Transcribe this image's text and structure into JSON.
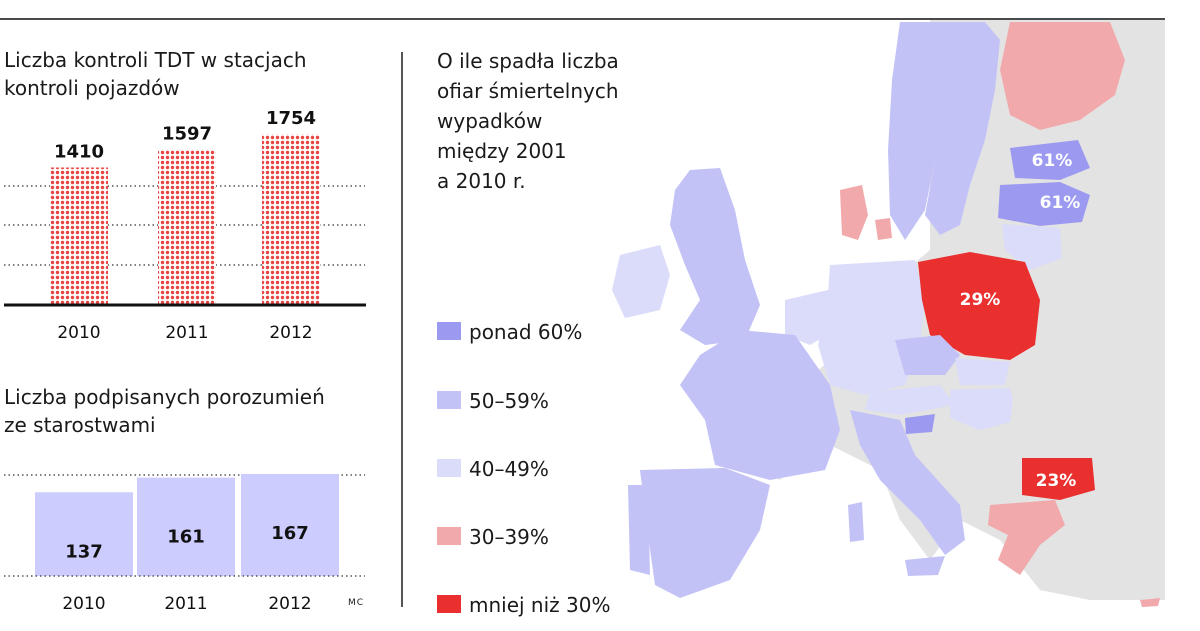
{
  "chart_data": [
    {
      "type": "bar",
      "title": "Liczba kontroli TDT w stacjach kontroli pojazdów",
      "title_lines": [
        "Liczba kontroli TDT w stacjach",
        "kontroli pojazdów"
      ],
      "categories": [
        "2010",
        "2011",
        "2012"
      ],
      "values": [
        1410,
        1597,
        1754
      ],
      "data_labels": [
        "1410",
        "1597",
        "1754"
      ],
      "bar_color": "#e84545",
      "bar_pattern": "dotted",
      "grid": true
    },
    {
      "type": "bar",
      "title": "Liczba podpisanych porozumień ze starostwami",
      "title_lines": [
        "Liczba podpisanych porozumień",
        "ze starostwami"
      ],
      "categories": [
        "2010",
        "2011",
        "2012"
      ],
      "values": [
        137,
        161,
        167
      ],
      "data_labels": [
        "137",
        "161",
        "167"
      ],
      "bar_color": "#ccccff",
      "grid": true
    }
  ],
  "map": {
    "title_lines": [
      "O ile spadła liczba",
      "ofiar śmiertelnych",
      "wypadków",
      "między 2001",
      "a 2010 r."
    ],
    "labels": [
      {
        "country": "Estonia",
        "value": "61%",
        "category": 0
      },
      {
        "country": "Latvia",
        "value": "61%",
        "category": 0
      },
      {
        "country": "Poland",
        "value": "29%",
        "category": 4
      },
      {
        "country": "Bulgaria",
        "value": "23%",
        "category": 4
      }
    ],
    "legend": [
      {
        "label": "ponad 60%",
        "color": "#9b99f0"
      },
      {
        "label": "50–59%",
        "color": "#c2c2f7"
      },
      {
        "label": "40–49%",
        "color": "#dadcfa"
      },
      {
        "label": "30–39%",
        "color": "#f2a9ab"
      },
      {
        "label": "mniej niż 30%",
        "color": "#ea2f2f"
      }
    ],
    "no_data_color": "#e3e3e3"
  },
  "credit": "MC"
}
